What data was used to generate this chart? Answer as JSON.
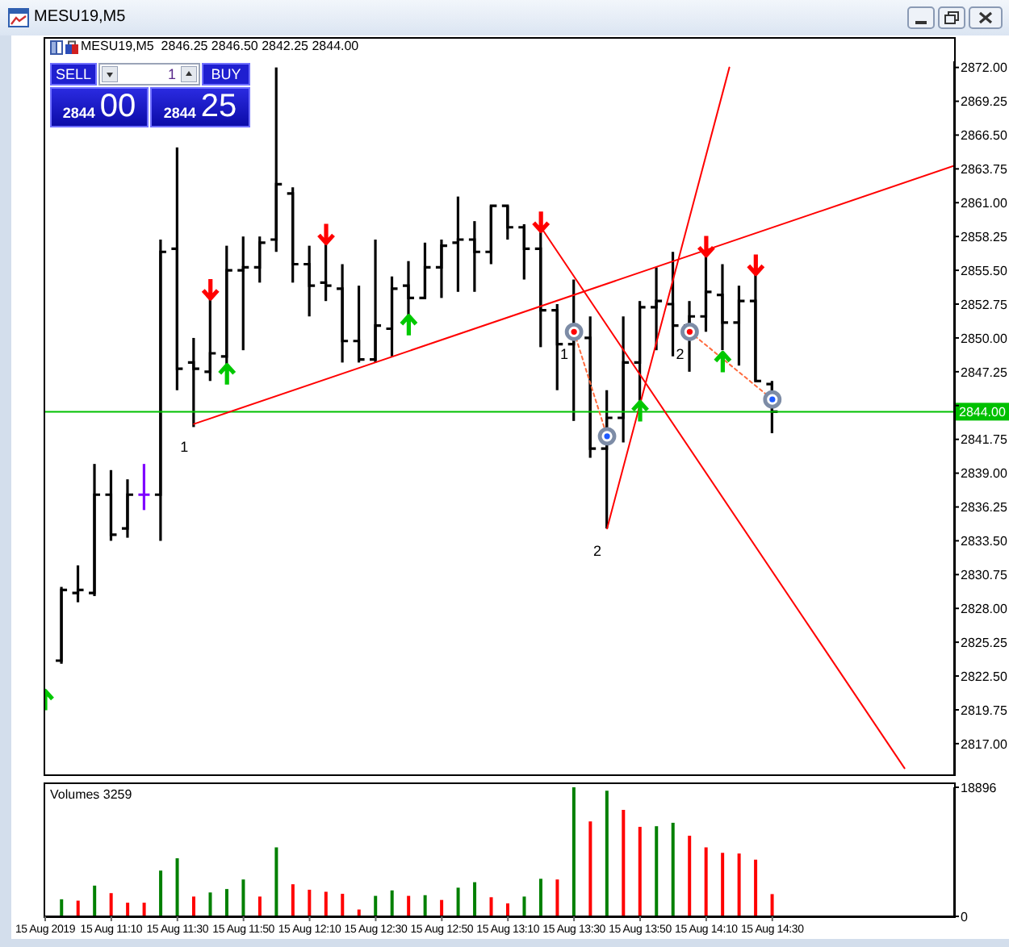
{
  "chart_data": [
    {
      "type": "candlestick",
      "title": "MESU19,M5",
      "subtitle": "MESU19,M5  2846.25 2846.50 2842.25 2844.00",
      "x": [
        "2019-08-15T10:55",
        "2019-08-15T11:00",
        "2019-08-15T11:05",
        "2019-08-15T11:10",
        "2019-08-15T11:15",
        "2019-08-15T11:20",
        "2019-08-15T11:25",
        "2019-08-15T11:30",
        "2019-08-15T11:35",
        "2019-08-15T11:40",
        "2019-08-15T11:45",
        "2019-08-15T11:50",
        "2019-08-15T11:55",
        "2019-08-15T12:00",
        "2019-08-15T12:05",
        "2019-08-15T12:10",
        "2019-08-15T12:15",
        "2019-08-15T12:20",
        "2019-08-15T12:25",
        "2019-08-15T12:30",
        "2019-08-15T12:35",
        "2019-08-15T12:40",
        "2019-08-15T12:45",
        "2019-08-15T12:50",
        "2019-08-15T12:55",
        "2019-08-15T13:00",
        "2019-08-15T13:05",
        "2019-08-15T13:10",
        "2019-08-15T13:15",
        "2019-08-15T13:20",
        "2019-08-15T13:25",
        "2019-08-15T13:30",
        "2019-08-15T13:35",
        "2019-08-15T13:40",
        "2019-08-15T13:45",
        "2019-08-15T13:50",
        "2019-08-15T13:55",
        "2019-08-15T14:00",
        "2019-08-15T14:05",
        "2019-08-15T14:10",
        "2019-08-15T14:15",
        "2019-08-15T14:20",
        "2019-08-15T14:25",
        "2019-08-15T14:30"
      ],
      "ohlc": [
        [
          2823.75,
          2829.75,
          2823.5,
          2829.5
        ],
        [
          2829.25,
          2831.5,
          2828.5,
          2829.5
        ],
        [
          2829.25,
          2839.75,
          2829.0,
          2837.25
        ],
        [
          2837.25,
          2839.25,
          2833.5,
          2834.0
        ],
        [
          2834.5,
          2838.5,
          2833.75,
          2837.25
        ],
        [
          2837.25,
          2839.75,
          2836.0,
          2837.25
        ],
        [
          2837.25,
          2858.0,
          2833.5,
          2857.0
        ],
        [
          2857.25,
          2865.5,
          2845.75,
          2847.5
        ],
        [
          2848.0,
          2850.0,
          2842.75,
          2847.5
        ],
        [
          2847.25,
          2853.25,
          2846.5,
          2848.75
        ],
        [
          2848.5,
          2857.5,
          2847.75,
          2855.5
        ],
        [
          2855.5,
          2858.25,
          2849.0,
          2855.75
        ],
        [
          2855.75,
          2858.25,
          2854.5,
          2857.75
        ],
        [
          2858.0,
          2872.0,
          2857.0,
          2862.5
        ],
        [
          2861.75,
          2862.25,
          2854.5,
          2856.0
        ],
        [
          2856.0,
          2857.5,
          2851.75,
          2854.25
        ],
        [
          2854.5,
          2857.75,
          2853.0,
          2854.25
        ],
        [
          2854.0,
          2856.0,
          2848.0,
          2849.75
        ],
        [
          2849.75,
          2854.25,
          2848.0,
          2848.25
        ],
        [
          2848.25,
          2858.0,
          2848.0,
          2851.0
        ],
        [
          2850.75,
          2855.0,
          2848.5,
          2854.0
        ],
        [
          2854.25,
          2856.25,
          2851.75,
          2853.25
        ],
        [
          2853.25,
          2857.75,
          2853.25,
          2855.75
        ],
        [
          2855.75,
          2858.0,
          2853.25,
          2857.5
        ],
        [
          2857.75,
          2861.5,
          2853.75,
          2858.0
        ],
        [
          2858.0,
          2859.5,
          2853.75,
          2857.0
        ],
        [
          2857.0,
          2860.75,
          2856.0,
          2860.75
        ],
        [
          2860.75,
          2860.75,
          2858.0,
          2859.0
        ],
        [
          2859.0,
          2859.25,
          2854.75,
          2857.25
        ],
        [
          2857.25,
          2858.75,
          2849.25,
          2852.25
        ],
        [
          2852.25,
          2852.75,
          2845.75,
          2849.5
        ],
        [
          2849.5,
          2854.75,
          2843.25,
          2850.0
        ],
        [
          2850.0,
          2851.75,
          2840.25,
          2841.0
        ],
        [
          2841.0,
          2845.75,
          2834.5,
          2843.5
        ],
        [
          2843.5,
          2851.75,
          2841.5,
          2848.0
        ],
        [
          2848.0,
          2853.0,
          2844.75,
          2852.5
        ],
        [
          2852.5,
          2855.75,
          2849.0,
          2853.0
        ],
        [
          2852.75,
          2857.0,
          2848.5,
          2851.0
        ],
        [
          2851.0,
          2853.0,
          2847.25,
          2851.75
        ],
        [
          2851.75,
          2857.0,
          2850.5,
          2853.75
        ],
        [
          2853.5,
          2856.0,
          2849.0,
          2851.25
        ],
        [
          2851.25,
          2854.25,
          2847.75,
          2853.0
        ],
        [
          2853.0,
          2855.5,
          2846.5,
          2846.5
        ],
        [
          2846.25,
          2846.5,
          2842.25,
          2844.0
        ]
      ],
      "colors": [
        "#000000",
        "#000000",
        "#000000",
        "#000000",
        "#000000",
        "#7f00ff",
        "#000000",
        "#000000",
        "#000000",
        "#000000",
        "#000000",
        "#000000",
        "#000000",
        "#000000",
        "#000000",
        "#000000",
        "#000000",
        "#000000",
        "#000000",
        "#000000",
        "#000000",
        "#000000",
        "#000000",
        "#000000",
        "#000000",
        "#000000",
        "#000000",
        "#000000",
        "#000000",
        "#000000",
        "#000000",
        "#000000",
        "#000000",
        "#000000",
        "#000000",
        "#000000",
        "#000000",
        "#000000",
        "#000000",
        "#000000",
        "#000000",
        "#000000",
        "#000000",
        "#000000"
      ],
      "series": [
        {
          "type": "line",
          "color": "#ff0000",
          "x": [
            "2019-08-15T11:35",
            "2019-08-15T15:25"
          ],
          "values": [
            2843.0,
            2864.0
          ]
        },
        {
          "type": "line",
          "color": "#ff0000",
          "x": [
            "2019-08-15T13:20",
            "2019-08-15T15:10"
          ],
          "values": [
            2859.0,
            2815.0
          ]
        },
        {
          "type": "line",
          "color": "#ff0000",
          "x": [
            "2019-08-15T13:40",
            "2019-08-15T14:17"
          ],
          "values": [
            2834.5,
            2872.0
          ]
        },
        {
          "type": "line",
          "color": "#ff6a3d",
          "line_style": "dotted",
          "marker": "circle",
          "colors": [
            "#ff0000",
            "#1e5aff"
          ],
          "x": [
            "2019-08-15T13:30",
            "2019-08-15T13:40"
          ],
          "values": [
            2850.5,
            2842.0
          ]
        },
        {
          "type": "line",
          "color": "#ff6a3d",
          "line_style": "dotted",
          "marker": "circle",
          "colors": [
            "#ff0000",
            "#1e5aff"
          ],
          "x": [
            "2019-08-15T14:05",
            "2019-08-15T14:30"
          ],
          "values": [
            2850.5,
            2845.0
          ]
        },
        {
          "type": "scatter",
          "color": "#ff0000",
          "x": [
            "2019-08-15T11:40",
            "2019-08-15T12:15",
            "2019-08-15T13:20",
            "2019-08-15T14:10",
            "2019-08-15T14:25"
          ],
          "values": [
            2854.0,
            2858.5,
            2859.5,
            2857.5,
            2856.0
          ]
        },
        {
          "type": "scatter",
          "color": "#00c800",
          "x": [
            "2019-08-15T10:50",
            "2019-08-15T11:45",
            "2019-08-15T12:40",
            "2019-08-15T13:50",
            "2019-08-15T14:15"
          ],
          "values": [
            2820.5,
            2847.0,
            2851.0,
            2844.0,
            2848.0
          ]
        }
      ],
      "xlim": [
        "2019-08-15T10:50",
        "2019-08-15T15:25"
      ],
      "ylim": [
        2814.5,
        2872.5
      ],
      "yticks": [
        {
          "value": 2817,
          "label": "2817.00"
        },
        {
          "value": 2819.75,
          "label": "2819.75"
        },
        {
          "value": 2822.5,
          "label": "2822.50"
        },
        {
          "value": 2825.25,
          "label": "2825.25"
        },
        {
          "value": 2828,
          "label": "2828.00"
        },
        {
          "value": 2830.75,
          "label": "2830.75"
        },
        {
          "value": 2833.5,
          "label": "2833.50"
        },
        {
          "value": 2836.25,
          "label": "2836.25"
        },
        {
          "value": 2839,
          "label": "2839.00"
        },
        {
          "value": 2841.75,
          "label": "2841.75"
        },
        {
          "value": 2844.5,
          "label": null
        },
        {
          "value": 2847.25,
          "label": "2847.25"
        },
        {
          "value": 2850,
          "label": "2850.00"
        },
        {
          "value": 2852.75,
          "label": "2852.75"
        },
        {
          "value": 2855.5,
          "label": "2855.50"
        },
        {
          "value": 2858.25,
          "label": "2858.25"
        },
        {
          "value": 2861,
          "label": "2861.00"
        },
        {
          "value": 2863.75,
          "label": "2863.75"
        },
        {
          "value": 2866.5,
          "label": "2866.50"
        },
        {
          "value": 2869.25,
          "label": "2869.25"
        },
        {
          "value": 2872,
          "label": "2872.00"
        }
      ],
      "ref_lines": [
        {
          "axis": "y",
          "value": 2844.0,
          "label": "2844.00",
          "color": "#00c000"
        }
      ],
      "annotations": [
        "SELL",
        "1",
        "BUY",
        "2844",
        "00",
        "2844",
        "25",
        {
          "text": "1",
          "x": "2019-08-15T11:35",
          "y": 2843.0
        },
        {
          "text": "2",
          "x": "2019-08-15T13:40",
          "y": 2834.5
        },
        {
          "text": "1",
          "x": "2019-08-15T13:30",
          "y": 2850.5
        },
        {
          "text": "2",
          "x": "2019-08-15T14:05",
          "y": 2850.5
        }
      ],
      "tick_labels": "y"
    },
    {
      "type": "bar",
      "title": "Volumes 3259",
      "x": [
        "2019-08-15T10:55",
        "2019-08-15T11:00",
        "2019-08-15T11:05",
        "2019-08-15T11:10",
        "2019-08-15T11:15",
        "2019-08-15T11:20",
        "2019-08-15T11:25",
        "2019-08-15T11:30",
        "2019-08-15T11:35",
        "2019-08-15T11:40",
        "2019-08-15T11:45",
        "2019-08-15T11:50",
        "2019-08-15T11:55",
        "2019-08-15T12:00",
        "2019-08-15T12:05",
        "2019-08-15T12:10",
        "2019-08-15T12:15",
        "2019-08-15T12:20",
        "2019-08-15T12:25",
        "2019-08-15T12:30",
        "2019-08-15T12:35",
        "2019-08-15T12:40",
        "2019-08-15T12:45",
        "2019-08-15T12:50",
        "2019-08-15T12:55",
        "2019-08-15T13:00",
        "2019-08-15T13:05",
        "2019-08-15T13:10",
        "2019-08-15T13:15",
        "2019-08-15T13:20",
        "2019-08-15T13:25",
        "2019-08-15T13:30",
        "2019-08-15T13:35",
        "2019-08-15T13:40",
        "2019-08-15T13:45",
        "2019-08-15T13:50",
        "2019-08-15T13:55",
        "2019-08-15T14:00",
        "2019-08-15T14:05",
        "2019-08-15T14:10",
        "2019-08-15T14:15",
        "2019-08-15T14:20",
        "2019-08-15T14:25",
        "2019-08-15T14:30"
      ],
      "values": [
        2500,
        2300,
        4500,
        3400,
        2000,
        2000,
        6700,
        8500,
        2900,
        3500,
        4000,
        5400,
        2900,
        10100,
        4700,
        3900,
        3600,
        3300,
        1000,
        3000,
        3800,
        3000,
        3100,
        2400,
        4200,
        5000,
        2800,
        1900,
        2900,
        5500,
        5400,
        18896,
        13900,
        18400,
        15600,
        13100,
        13200,
        13700,
        11800,
        10100,
        9300,
        9200,
        8300,
        3259
      ],
      "colors": [
        "#008000",
        "#ff0000",
        "#008000",
        "#ff0000",
        "#ff0000",
        "#ff0000",
        "#008000",
        "#008000",
        "#ff0000",
        "#008000",
        "#008000",
        "#008000",
        "#ff0000",
        "#008000",
        "#ff0000",
        "#ff0000",
        "#ff0000",
        "#ff0000",
        "#ff0000",
        "#008000",
        "#008000",
        "#ff0000",
        "#008000",
        "#ff0000",
        "#008000",
        "#008000",
        "#ff0000",
        "#ff0000",
        "#008000",
        "#008000",
        "#ff0000",
        "#008000",
        "#ff0000",
        "#008000",
        "#ff0000",
        "#ff0000",
        "#008000",
        "#008000",
        "#ff0000",
        "#ff0000",
        "#ff0000",
        "#ff0000",
        "#ff0000",
        "#ff0000"
      ],
      "xlim": [
        "2019-08-15T10:50",
        "2019-08-15T15:25"
      ],
      "xticks": [
        {
          "value": "2019-08-15T10:50",
          "label": "15 Aug 2019"
        },
        {
          "value": "2019-08-15T11:10",
          "label": "15 Aug 11:10"
        },
        {
          "value": "2019-08-15T11:30",
          "label": "15 Aug 11:30"
        },
        {
          "value": "2019-08-15T11:50",
          "label": "15 Aug 11:50"
        },
        {
          "value": "2019-08-15T12:10",
          "label": "15 Aug 12:10"
        },
        {
          "value": "2019-08-15T12:30",
          "label": "15 Aug 12:30"
        },
        {
          "value": "2019-08-15T12:50",
          "label": "15 Aug 12:50"
        },
        {
          "value": "2019-08-15T13:10",
          "label": "15 Aug 13:10"
        },
        {
          "value": "2019-08-15T13:30",
          "label": "15 Aug 13:30"
        },
        {
          "value": "2019-08-15T13:50",
          "label": "15 Aug 13:50"
        },
        {
          "value": "2019-08-15T14:10",
          "label": "15 Aug 14:10"
        },
        {
          "value": "2019-08-15T14:30",
          "label": "15 Aug 14:30"
        }
      ],
      "ylim": [
        0,
        18896
      ],
      "yticks": [
        0,
        18896
      ]
    }
  ]
}
